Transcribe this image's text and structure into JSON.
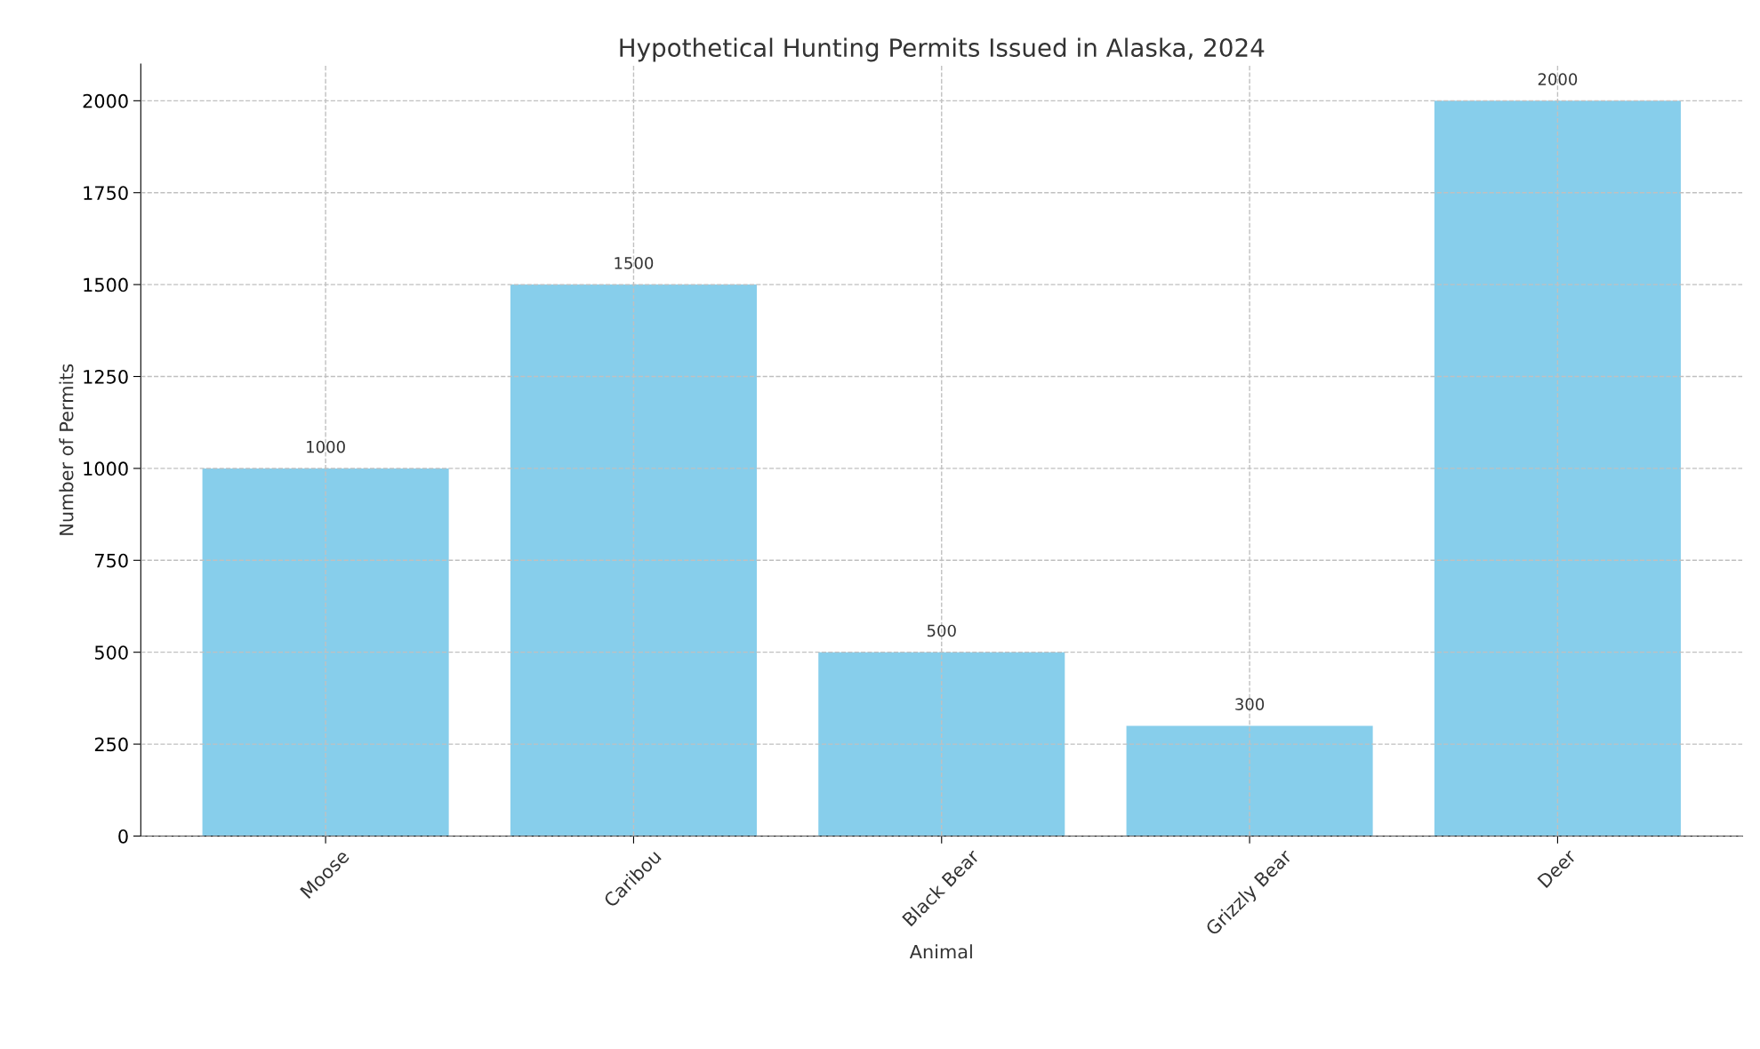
{
  "chart_data": {
    "type": "bar",
    "title": "Hypothetical Hunting Permits Issued in Alaska, 2024",
    "xlabel": "Animal",
    "ylabel": "Number of Permits",
    "categories": [
      "Moose",
      "Caribou",
      "Black Bear",
      "Grizzly Bear",
      "Deer"
    ],
    "values": [
      1000,
      1500,
      500,
      300,
      2000
    ],
    "color": "#87ceeb",
    "ylim": [
      0,
      2100
    ],
    "yticks": [
      0,
      250,
      500,
      750,
      1000,
      1250,
      1500,
      1750,
      2000
    ],
    "grid": true,
    "data_labels": true
  }
}
